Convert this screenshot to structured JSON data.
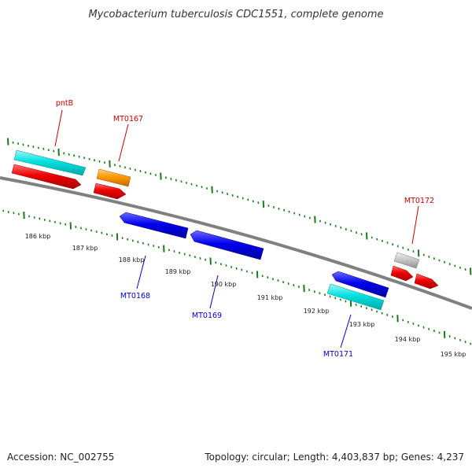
{
  "title": "Mycobacterium tuberculosis CDC1551, complete genome",
  "footer": {
    "accession": "Accession: NC_002755",
    "summary": "Topology: circular; Length: 4,403,837 bp; Genes: 4,237"
  },
  "colors": {
    "backbone": "#808080",
    "tick": "#1a7a1a",
    "label_forward": "#cc0000",
    "label_reverse": "#0000cc",
    "gene_cyan": "#00e0e0",
    "gene_red": "#ee0000",
    "gene_orange": "#ff9900",
    "gene_blue": "#0000ee",
    "gene_gray": "#c8c8c8"
  },
  "kbp_labels": [
    "186 kbp",
    "187 kbp",
    "188 kbp",
    "189 kbp",
    "190 kbp",
    "191 kbp",
    "192 kbp",
    "193 kbp",
    "194 kbp",
    "195 kbp"
  ],
  "gene_labels": {
    "pntB": "pntB",
    "MT0167": "MT0167",
    "MT0172": "MT0172",
    "MT0168": "MT0168",
    "MT0169": "MT0169",
    "MT0171": "MT0171"
  }
}
